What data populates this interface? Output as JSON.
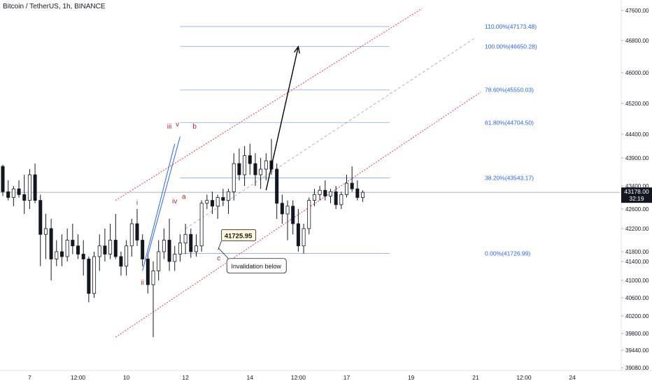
{
  "header": {
    "title": "Bitcoin / TetherUS, 1h, BINANCE"
  },
  "colors": {
    "up": "#26a69a",
    "candle": "#131722",
    "wick": "#131722",
    "channel": "#f23645",
    "fib": "#2962ff",
    "fib_label": "#2962ff",
    "impulse": "#2962ff",
    "arrow": "#000000",
    "wave_label": "#b22833",
    "axis_text": "#131722",
    "price_line": "#9598a1"
  },
  "chart_data": {
    "type": "candlestick",
    "title": "Bitcoin / TetherUS, 1h, BINANCE",
    "ylim": [
      39080,
      47600
    ],
    "y_ticks": [
      "47600.00",
      "46800.00",
      "46000.00",
      "45200.00",
      "44400.00",
      "43900.00",
      "43400.00",
      "42600.00",
      "42200.00",
      "41800.00",
      "41400.00",
      "41000.00",
      "40600.00",
      "40200.00",
      "39800.00",
      "39440.00",
      "39080.00"
    ],
    "y_tick_values": [
      47600,
      46800,
      46000,
      45200,
      44400,
      43900,
      43400,
      42600,
      42200,
      41800,
      41400,
      41000,
      40600,
      40200,
      39800,
      39440,
      39080
    ],
    "x_ticks": [
      "7",
      "12:00",
      "10",
      "12",
      "14",
      "12:00",
      "17",
      "19",
      "21",
      "12:00",
      "24"
    ],
    "x_tick_index": [
      5,
      14,
      23,
      34,
      46,
      55,
      64,
      76,
      88,
      97,
      106
    ],
    "x_range_index": [
      0,
      120
    ],
    "last_price": "43178.00",
    "countdown": "32:19",
    "candles": [
      [
        43750,
        43780,
        43050,
        43200
      ],
      [
        43200,
        43500,
        42900,
        43000
      ],
      [
        43000,
        43400,
        42700,
        43300
      ],
      [
        43300,
        43500,
        43000,
        43100
      ],
      [
        43100,
        43600,
        42500,
        42900
      ],
      [
        42900,
        43700,
        42600,
        43600
      ],
      [
        43600,
        43800,
        42800,
        42900
      ],
      [
        42900,
        43100,
        41300,
        42100
      ],
      [
        42100,
        42500,
        41500,
        42200
      ],
      [
        42200,
        42400,
        41000,
        41500
      ],
      [
        41500,
        42000,
        41300,
        41800
      ],
      [
        41800,
        42100,
        41300,
        41600
      ],
      [
        41600,
        42200,
        41400,
        42000
      ],
      [
        42000,
        42300,
        41700,
        41900
      ],
      [
        41900,
        42100,
        41500,
        41700
      ],
      [
        41700,
        42000,
        41100,
        41500
      ],
      [
        41500,
        41600,
        40500,
        40700
      ],
      [
        40700,
        41800,
        40600,
        41600
      ],
      [
        41600,
        42100,
        41200,
        41900
      ],
      [
        41900,
        42200,
        41400,
        41700
      ],
      [
        41700,
        42300,
        41500,
        42000
      ],
      [
        42000,
        42500,
        41500,
        41600
      ],
      [
        41600,
        41800,
        41100,
        41300
      ],
      [
        41300,
        42000,
        41100,
        41900
      ],
      [
        41900,
        42400,
        41600,
        42300
      ],
      [
        42300,
        42600,
        41900,
        42000
      ],
      [
        42000,
        42100,
        41300,
        41500
      ],
      [
        41500,
        41700,
        40700,
        40900
      ],
      [
        40900,
        41400,
        39720,
        41200
      ],
      [
        41200,
        42000,
        41000,
        41800
      ],
      [
        41800,
        42200,
        41500,
        42000
      ],
      [
        42000,
        42400,
        41200,
        41400
      ],
      [
        41400,
        41900,
        41200,
        41700
      ],
      [
        41700,
        42100,
        41400,
        41950
      ],
      [
        41950,
        42300,
        41700,
        42100
      ],
      [
        42100,
        42200,
        41550,
        41800
      ],
      [
        41800,
        42100,
        41600,
        41900
      ],
      [
        41900,
        42900,
        41800,
        42800
      ],
      [
        42800,
        43100,
        42600,
        42900
      ],
      [
        42900,
        43200,
        42500,
        42700
      ],
      [
        42700,
        43100,
        42400,
        43000
      ],
      [
        43000,
        43300,
        42700,
        42900
      ],
      [
        42900,
        43300,
        42500,
        43200
      ],
      [
        43200,
        44000,
        42900,
        43800
      ],
      [
        43800,
        44100,
        43500,
        43600
      ],
      [
        43600,
        44150,
        43400,
        43950
      ],
      [
        43950,
        44200,
        43600,
        43800
      ],
      [
        43800,
        44000,
        43400,
        43600
      ],
      [
        43600,
        43900,
        43300,
        43700
      ],
      [
        43700,
        44000,
        43500,
        43850
      ],
      [
        43850,
        44300,
        43600,
        43700
      ],
      [
        43700,
        43800,
        42400,
        42800
      ],
      [
        42800,
        43100,
        42300,
        42500
      ],
      [
        42500,
        42900,
        42000,
        42700
      ],
      [
        42700,
        42900,
        42100,
        42300
      ],
      [
        42300,
        42600,
        41800,
        41900
      ],
      [
        41900,
        42300,
        41726,
        42200
      ],
      [
        42200,
        43000,
        42100,
        42900
      ],
      [
        42900,
        43300,
        42700,
        43100
      ],
      [
        43100,
        43400,
        42900,
        43250
      ],
      [
        43250,
        43500,
        42900,
        43050
      ],
      [
        43050,
        43300,
        42800,
        43200
      ],
      [
        43200,
        43400,
        42600,
        42750
      ],
      [
        42750,
        43200,
        42600,
        43100
      ],
      [
        43100,
        43600,
        43000,
        43450
      ],
      [
        43450,
        43750,
        43200,
        43300
      ],
      [
        43300,
        43500,
        42900,
        43000
      ],
      [
        43000,
        43250,
        42850,
        43178
      ]
    ],
    "channel_lines": [
      {
        "name": "upper",
        "points": [
          [
            21,
            42900
          ],
          [
            78,
            47650
          ]
        ]
      },
      {
        "name": "lower",
        "points": [
          [
            21,
            39720
          ],
          [
            89,
            45500
          ]
        ]
      },
      {
        "name": "middle",
        "points": [
          [
            34,
            42200
          ],
          [
            88,
            46880
          ]
        ]
      }
    ],
    "impulse_lines": [
      {
        "points": [
          [
            26,
            41200
          ],
          [
            32,
            44200
          ]
        ]
      },
      {
        "points": [
          [
            27,
            41650
          ],
          [
            33,
            44350
          ]
        ]
      }
    ],
    "fib_levels": [
      {
        "ratio": "110.00%",
        "price": 47173.48,
        "label": "110.00%(47173.48)"
      },
      {
        "ratio": "100.00%",
        "price": 46650.28,
        "label": "100.00%(46650.28)"
      },
      {
        "ratio": "78.60%",
        "price": 45550.03,
        "label": "78.60%(45550.03)"
      },
      {
        "ratio": "61.80%",
        "price": 44704.5,
        "label": "61.80%(44704.50)"
      },
      {
        "ratio": "38.20%",
        "price": 43543.17,
        "label": "38.20%(43543.17)"
      },
      {
        "ratio": "0.00%",
        "price": 41726.99,
        "label": "0.00%(41726.99)"
      }
    ],
    "fib_x_range": [
      33,
      72
    ],
    "projection_arrow": {
      "from": [
        49,
        43250
      ],
      "to": [
        55,
        46650
      ]
    },
    "wave_labels": [
      {
        "text": "i",
        "x": 25,
        "y": 42750
      },
      {
        "text": "ii",
        "x": 26,
        "y": 40900
      },
      {
        "text": "iii",
        "x": 31,
        "y": 44550
      },
      {
        "text": "iv",
        "x": 32,
        "y": 42800
      },
      {
        "text": "v",
        "x": 32.5,
        "y": 44600
      },
      {
        "text": "a",
        "x": 33.7,
        "y": 42950
      },
      {
        "text": "b",
        "x": 35.7,
        "y": 44550
      },
      {
        "text": "c",
        "x": 40.2,
        "y": 41450
      }
    ],
    "annotations": [
      {
        "text": "41725.95",
        "x": 41.1,
        "y": 42050,
        "style": "price-callout"
      },
      {
        "text": "Invalidation below",
        "x": 41.7,
        "y": 41300,
        "style": "callout"
      }
    ]
  }
}
